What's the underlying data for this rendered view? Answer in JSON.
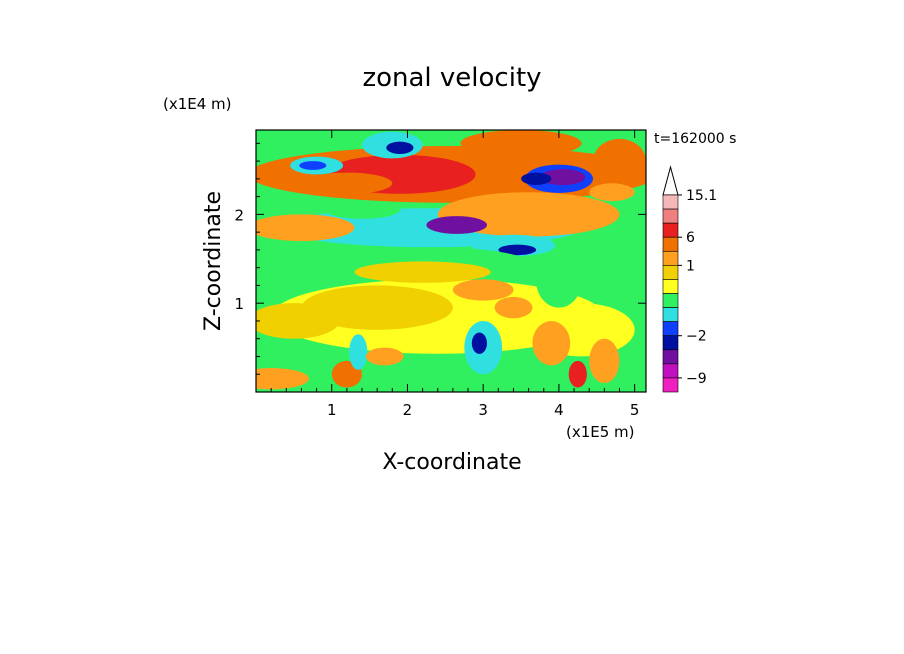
{
  "chart_data": {
    "type": "heatmap",
    "title": "zonal velocity",
    "xlabel": "X-coordinate",
    "ylabel": "Z-coordinate",
    "x_unit": "(x1E5 m)",
    "y_unit": "(x1E4 m)",
    "time_label": "t=162000 s",
    "xlim": [
      0,
      5.15
    ],
    "ylim": [
      0,
      2.95
    ],
    "x_ticks": [
      1,
      2,
      3,
      4,
      5
    ],
    "x_tick_labels": [
      "1",
      "2",
      "3",
      "4",
      "5"
    ],
    "y_ticks": [
      1,
      2
    ],
    "y_tick_labels": [
      "1",
      "2"
    ],
    "colorbar": {
      "levels_top_to_bottom": [
        15.1,
        12,
        9,
        6,
        3,
        1,
        0.5,
        0,
        -0.5,
        -1,
        -2,
        -4,
        -6,
        -9,
        -12,
        -15
      ],
      "labels": [
        {
          "text": "15.1",
          "value": 15.1
        },
        {
          "text": "6",
          "value": 6
        },
        {
          "text": "1",
          "value": 1
        },
        {
          "text": "−2",
          "value": -2
        },
        {
          "text": "−9",
          "value": -9
        }
      ],
      "colors_top_to_bottom": [
        "#f4b8b8",
        "#f08080",
        "#e82020",
        "#f07000",
        "#ffa020",
        "#f0d000",
        "#ffff20",
        "#30f060",
        "#30e0e0",
        "#1040ff",
        "#0010a0",
        "#7010a0",
        "#c010c0",
        "#f020c0"
      ],
      "extend_top": true
    },
    "field_features": [
      {
        "x": 1.9,
        "z": 2.45,
        "value": 6
      },
      {
        "x": 2.6,
        "z": 1.85,
        "value": -9
      },
      {
        "x": 3.45,
        "z": 1.6,
        "value": -6
      },
      {
        "x": 1.9,
        "z": 2.75,
        "value": -6
      },
      {
        "x": 4.0,
        "z": 2.4,
        "value": -9
      },
      {
        "x": 0.8,
        "z": 2.55,
        "value": -4
      },
      {
        "x": 3.5,
        "z": 2.8,
        "value": 3
      },
      {
        "x": 4.7,
        "z": 2.55,
        "value": 3
      },
      {
        "x": 2.4,
        "z": 1.2,
        "value": 0.5
      },
      {
        "x": 0.5,
        "z": 0.8,
        "value": 0.5
      },
      {
        "x": 2.95,
        "z": 0.55,
        "value": -6
      }
    ]
  }
}
